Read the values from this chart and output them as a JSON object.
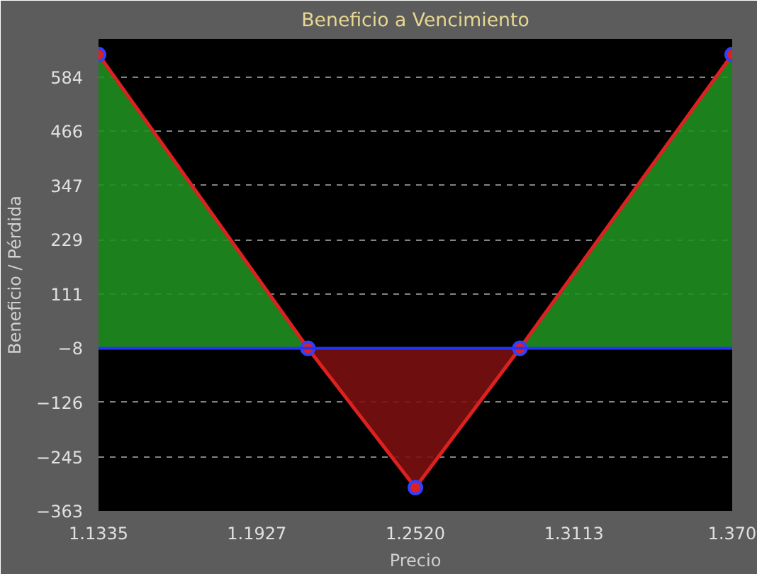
{
  "chart_data": {
    "type": "line",
    "title": "Beneficio a Vencimiento",
    "xlabel": "Precio",
    "ylabel": "Beneficio / Pérdida",
    "x": [
      1.1335,
      1.2118,
      1.252,
      1.2911,
      1.3705
    ],
    "series": [
      {
        "type": "area",
        "color": "#1f8f1f",
        "x": [
          1.1335,
          1.2118
        ],
        "values": [
          633,
          -8
        ]
      },
      {
        "type": "area",
        "color": "#7a1010",
        "x": [
          1.2118,
          1.252,
          1.2911
        ],
        "values": [
          -8,
          -312,
          -8
        ]
      },
      {
        "type": "area",
        "color": "#1f8f1f",
        "x": [
          1.2911,
          1.3705
        ],
        "values": [
          -8,
          633
        ]
      },
      {
        "color": "#dd2020",
        "marker": "circle",
        "values": [
          633,
          -8,
          -312,
          -8,
          633
        ]
      }
    ],
    "xlim": [
      1.1335,
      1.3705
    ],
    "xticks": [
      {
        "value": 1.1335,
        "label": "1.1335"
      },
      {
        "value": 1.1927,
        "label": "1.1927"
      },
      {
        "value": 1.252,
        "label": "1.2520"
      },
      {
        "value": 1.3113,
        "label": "1.3113"
      },
      {
        "value": 1.3705,
        "label": "1.370"
      }
    ],
    "ylim": [
      -363,
      667
    ],
    "yticks": [
      -363,
      -245,
      -126,
      -8,
      111,
      229,
      347,
      466,
      584
    ],
    "ref_lines": [
      {
        "axis": "y",
        "value": -8,
        "color": "#2233ff"
      }
    ],
    "grid": "y",
    "line_style": "solid"
  }
}
